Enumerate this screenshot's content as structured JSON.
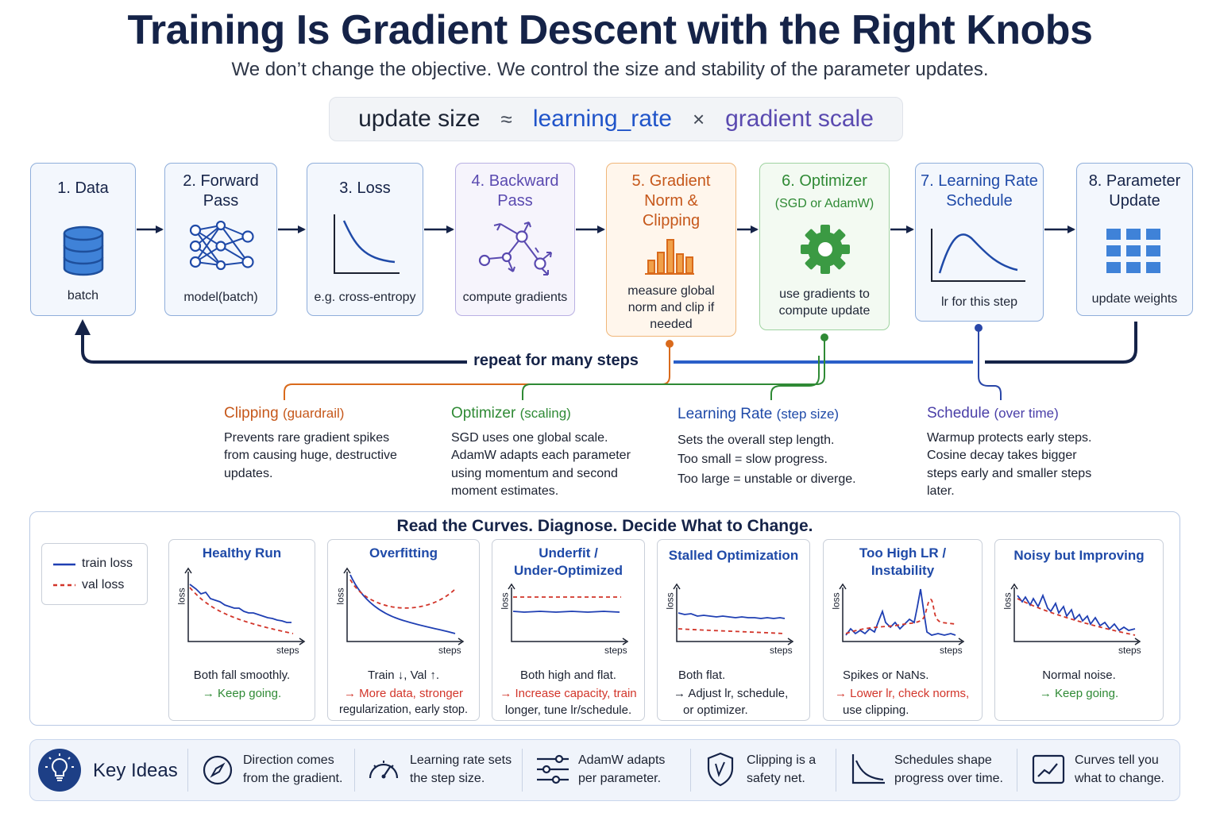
{
  "title": "Training Is Gradient Descent with the Right Knobs",
  "subtitle": "We don’t change the objective. We control the size and stability of the parameter updates.",
  "formula": {
    "update_size": "update size",
    "approx": "≈",
    "learning_rate": "learning_rate",
    "times": "×",
    "gradient_scale": "gradient scale"
  },
  "colors": {
    "navy": "#152348",
    "blue": "#1f4aa8",
    "orange": "#d96a1c",
    "green": "#2f8a35",
    "purple": "#5a4ab0",
    "red": "#d2352a"
  },
  "pipeline": [
    {
      "title": "1. Data",
      "subtitle": "batch",
      "icon": "database-icon"
    },
    {
      "title": "2. Forward Pass",
      "subtitle": "model(batch)",
      "icon": "network-icon"
    },
    {
      "title": "3. Loss",
      "subtitle": "e.g. cross-entropy",
      "icon": "loss-curve-icon"
    },
    {
      "title": "4. Backward Pass",
      "subtitle": "compute gradients",
      "icon": "backprop-icon"
    },
    {
      "title": "5. Gradient Norm & Clipping",
      "subtitle": "measure global norm and clip if needed",
      "icon": "bar-chart-icon"
    },
    {
      "title": "6. Optimizer",
      "title_note": "(SGD or AdamW)",
      "subtitle": "use gradients to compute update",
      "icon": "gear-icon"
    },
    {
      "title": "7. Learning Rate Schedule",
      "subtitle": "lr for this step",
      "icon": "schedule-curve-icon"
    },
    {
      "title": "8. Parameter Update",
      "subtitle": "update weights",
      "icon": "grid-icon"
    }
  ],
  "loop_label": "repeat for many steps",
  "callouts": [
    {
      "head": "Clipping",
      "head_note": "(guardrail)",
      "lines": [
        "Prevents rare gradient spikes",
        "from causing huge, destructive",
        "updates."
      ]
    },
    {
      "head": "Optimizer",
      "head_note": "(scaling)",
      "lines": [
        "SGD uses one global scale.",
        "AdamW adapts each parameter",
        "using momentum and second",
        "moment estimates."
      ]
    },
    {
      "head": "Learning Rate",
      "head_note": "(step size)",
      "lines": [
        "Sets the overall step length.",
        "Too small = slow progress.",
        "Too large = unstable or diverge."
      ]
    },
    {
      "head": "Schedule",
      "head_note": "(over time)",
      "lines": [
        "Warmup protects early steps.",
        "Cosine decay takes bigger",
        "steps early and smaller steps",
        "later."
      ]
    }
  ],
  "diagnose": {
    "heading": "Read the Curves.  Diagnose. Decide What to Change.",
    "legend": {
      "train": "train loss",
      "val": "val loss"
    },
    "axis_y": "loss",
    "axis_x": "steps",
    "cases": [
      {
        "title": [
          "Healthy Run"
        ],
        "line1": "Both fall smoothly.",
        "line2": "→ Keep going.",
        "line3": ""
      },
      {
        "title": [
          "Overfitting"
        ],
        "line1": "Train ↓, Val ↑.",
        "line2": "→ More data, stronger",
        "line3": "regularization, early stop."
      },
      {
        "title": [
          "Underfit /",
          "Under-Optimized"
        ],
        "line1": "Both high and flat.",
        "line2": "→ Increase capacity, train",
        "line3": "longer, tune lr/schedule."
      },
      {
        "title": [
          "Stalled Optimization"
        ],
        "line1": "Both flat.",
        "line2": "→ Adjust lr, schedule,",
        "line3": "or optimizer."
      },
      {
        "title": [
          "Too High LR /",
          "Instability"
        ],
        "line1": "Spikes or NaNs.",
        "line2": "→ Lower lr, check norms,",
        "line3": "use clipping."
      },
      {
        "title": [
          "Noisy but Improving"
        ],
        "line1": "Normal noise.",
        "line2": "→ Keep going.",
        "line3": ""
      }
    ]
  },
  "key_ideas": {
    "label": "Key Ideas",
    "items": [
      {
        "icon": "compass-icon",
        "lines": [
          "Direction comes",
          "from the gradient."
        ]
      },
      {
        "icon": "gauge-icon",
        "lines": [
          "Learning rate sets",
          "the step size."
        ]
      },
      {
        "icon": "sliders-icon",
        "lines": [
          "AdamW adapts",
          "per parameter."
        ]
      },
      {
        "icon": "shield-icon",
        "lines": [
          "Clipping is a",
          "safety net."
        ]
      },
      {
        "icon": "decay-curve-icon",
        "lines": [
          "Schedules shape",
          "progress over time."
        ]
      },
      {
        "icon": "trend-chart-icon",
        "lines": [
          "Curves tell you",
          "what to change."
        ]
      }
    ]
  }
}
